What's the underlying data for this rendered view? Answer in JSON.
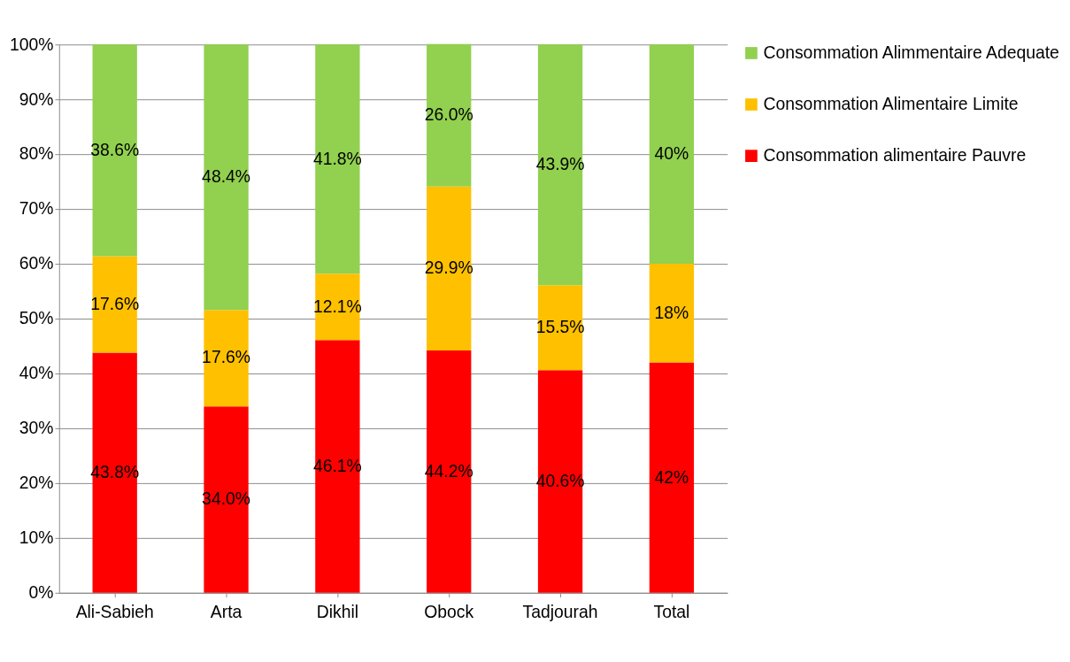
{
  "chart_data": {
    "type": "bar",
    "stacked": true,
    "categories": [
      "Ali-Sabieh",
      "Arta",
      "Dikhil",
      "Obock",
      "Tadjourah",
      "Total"
    ],
    "series": [
      {
        "name": "Consommation alimentaire Pauvre",
        "color": "#ff0000",
        "values": [
          43.8,
          34.0,
          46.1,
          44.2,
          40.6,
          42
        ],
        "value_labels": [
          "43.8%",
          "34.0%",
          "46.1%",
          "44.2%",
          "40.6%",
          "42%"
        ]
      },
      {
        "name": "Consommation Alimentaire Limite",
        "color": "#ffc000",
        "values": [
          17.6,
          17.6,
          12.1,
          29.9,
          15.5,
          18
        ],
        "value_labels": [
          "17.6%",
          "17.6%",
          "12.1%",
          "29.9%",
          "15.5%",
          "18%"
        ]
      },
      {
        "name": "Consommation Alimmentaire Adequate",
        "color": "#92d050",
        "values": [
          38.6,
          48.4,
          41.8,
          26.0,
          43.9,
          40
        ],
        "value_labels": [
          "38.6%",
          "48.4%",
          "41.8%",
          "26.0%",
          "43.9%",
          "40%"
        ]
      }
    ],
    "ylim": [
      0,
      100
    ],
    "yticks": [
      {
        "value": 0,
        "label": "0%"
      },
      {
        "value": 10,
        "label": "10%"
      },
      {
        "value": 20,
        "label": "20%"
      },
      {
        "value": 30,
        "label": "30%"
      },
      {
        "value": 40,
        "label": "40%"
      },
      {
        "value": 50,
        "label": "50%"
      },
      {
        "value": 60,
        "label": "60%"
      },
      {
        "value": 70,
        "label": "70%"
      },
      {
        "value": 80,
        "label": "80%"
      },
      {
        "value": 90,
        "label": "90%"
      },
      {
        "value": 100,
        "label": "100%"
      }
    ],
    "grid": "y",
    "legend": "right"
  }
}
